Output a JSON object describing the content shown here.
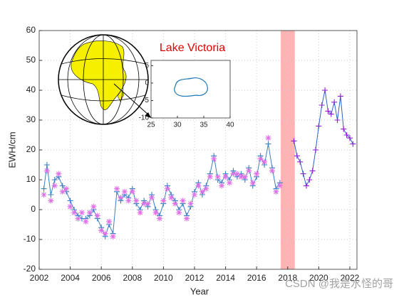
{
  "chart_data": {
    "type": "line",
    "xlabel": "Year",
    "ylabel": "EWH/cm",
    "xlim": [
      2002,
      2022.46
    ],
    "xticks": [
      2002,
      2004,
      2006,
      2008,
      2010,
      2012,
      2014,
      2016,
      2018,
      2020,
      2022
    ],
    "ylim": [
      -20,
      60
    ],
    "yticks": [
      -20,
      -10,
      0,
      10,
      20,
      30,
      40,
      50,
      60
    ],
    "grid": true,
    "shaded_band": {
      "x": [
        2017.55,
        2018.46
      ],
      "color": "#ffb3b3"
    },
    "series": [
      {
        "color": "#3b7fc4",
        "marker": "+",
        "line": true,
        "x": [
          2002.3,
          2002.5,
          2002.75,
          2003,
          2003.25,
          2003.5,
          2003.75,
          2004,
          2004.25,
          2004.5,
          2004.75,
          2005,
          2005.25,
          2005.5,
          2005.75,
          2006,
          2006.25,
          2006.5,
          2006.75,
          2007,
          2007.25,
          2007.5,
          2007.75,
          2008,
          2008.25,
          2008.5,
          2008.75,
          2009,
          2009.25,
          2009.5,
          2009.75,
          2010,
          2010.25,
          2010.5,
          2010.75,
          2011,
          2011.25,
          2011.5,
          2011.75,
          2012,
          2012.25,
          2012.5,
          2012.75,
          2013,
          2013.25,
          2013.5,
          2013.75,
          2014,
          2014.25,
          2014.5,
          2014.75,
          2015,
          2015.25,
          2015.5,
          2015.75,
          2016,
          2016.25,
          2016.5,
          2016.75,
          2017,
          2017.25,
          2017.5
        ],
        "values": [
          7,
          15,
          5,
          10,
          11,
          8,
          6,
          3,
          0,
          -2,
          -3,
          -3,
          -2,
          0,
          -3,
          -6,
          -9,
          -5,
          -8,
          6,
          3,
          5,
          4,
          7,
          2,
          0,
          3,
          1,
          5,
          0,
          -2,
          2,
          8,
          5,
          3,
          0,
          2,
          -2,
          1,
          6,
          9,
          5,
          8,
          12,
          18,
          10,
          9,
          12,
          10,
          13,
          11,
          12,
          10,
          14,
          8,
          11,
          18,
          15,
          22,
          14,
          7,
          9
        ]
      },
      {
        "color": "#e070e8",
        "marker": "*",
        "line": false,
        "x": [
          2002.3,
          2002.5,
          2002.75,
          2003,
          2003.25,
          2003.5,
          2003.75,
          2004,
          2004.25,
          2004.5,
          2004.75,
          2005,
          2005.25,
          2005.5,
          2005.75,
          2006,
          2006.25,
          2006.5,
          2006.75,
          2007,
          2007.25,
          2007.5,
          2007.75,
          2008,
          2008.25,
          2008.5,
          2008.75,
          2009,
          2009.25,
          2009.5,
          2009.75,
          2010,
          2010.25,
          2010.5,
          2010.75,
          2011,
          2011.25,
          2011.5,
          2011.75,
          2012,
          2012.25,
          2012.5,
          2012.75,
          2013,
          2013.25,
          2013.5,
          2013.75,
          2014,
          2014.25,
          2014.5,
          2014.75,
          2015,
          2015.25,
          2015.5,
          2015.75,
          2016,
          2016.25,
          2016.5,
          2016.75,
          2017,
          2017.25,
          2017.5
        ],
        "values": [
          5,
          13,
          3,
          8,
          12,
          6,
          7,
          1,
          -1,
          -3,
          -1,
          -4,
          -1,
          1,
          -2,
          -7,
          -8,
          -4,
          -9,
          7,
          4,
          6,
          3,
          6,
          3,
          -1,
          2,
          2,
          4,
          -1,
          -3,
          3,
          7,
          4,
          2,
          -1,
          3,
          -3,
          2,
          5,
          8,
          6,
          7,
          11,
          17,
          11,
          8,
          11,
          9,
          12,
          12,
          11,
          11,
          13,
          9,
          12,
          17,
          16,
          24,
          13,
          6,
          8
        ]
      },
      {
        "color": "#2a63c9",
        "marker_color": "#8a1fd6",
        "marker": "+",
        "line": true,
        "x": [
          2018.4,
          2018.6,
          2018.8,
          2019,
          2019.2,
          2019.4,
          2019.6,
          2019.8,
          2020,
          2020.2,
          2020.4,
          2020.6,
          2020.8,
          2021,
          2021.2,
          2021.4,
          2021.6,
          2021.8,
          2022,
          2022.2
        ],
        "values": [
          23,
          18,
          16,
          12,
          8,
          10,
          13,
          20,
          28,
          35,
          40,
          33,
          32,
          36,
          30,
          38,
          27,
          25,
          24,
          22
        ]
      }
    ],
    "annotations": {
      "title": "Lake Victoria",
      "watermark": "CSDN @我是水怪的哥"
    },
    "inset": {
      "xlim": [
        25,
        40
      ],
      "xticks": [
        25,
        30,
        35,
        40
      ],
      "ylim": [
        -10,
        6.5
      ],
      "yticks": [
        -10,
        -5,
        0,
        5
      ]
    }
  }
}
